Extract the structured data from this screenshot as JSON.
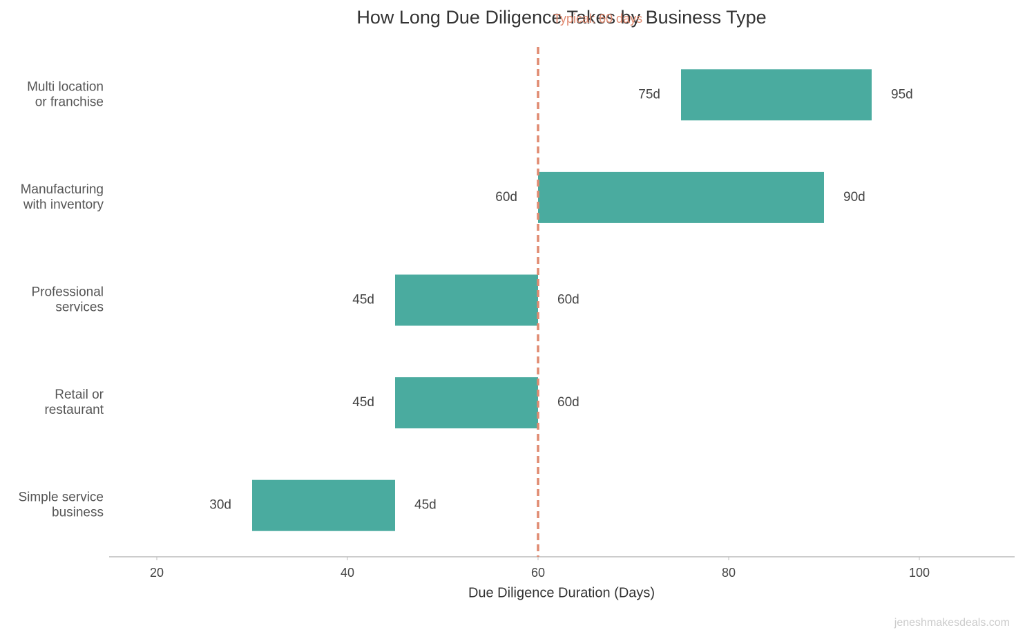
{
  "chart_data": {
    "type": "range_bar",
    "title": "How Long Due Diligence Takes by Business Type",
    "x_label": "Due Diligence Duration (Days)",
    "categories": [
      "Multi location\nor franchise",
      "Manufacturing\nwith inventory",
      "Professional\nservices",
      "Retail or\nrestaurant",
      "Simple service\nbusiness"
    ],
    "low": [
      75,
      60,
      45,
      45,
      30
    ],
    "low_labels": [
      "75d",
      "60d",
      "45d",
      "45d",
      "30d"
    ],
    "high": [
      95,
      90,
      60,
      60,
      45
    ],
    "high_labels": [
      "95d",
      "90d",
      "60d",
      "60d",
      "45d"
    ],
    "color": "#4aab9f",
    "xlim": [
      15,
      110
    ],
    "xticks": [
      20,
      40,
      60,
      80,
      100
    ],
    "reference_line": {
      "value": 60,
      "label": "Typical: 60 days",
      "color": "#e08a70"
    },
    "watermark": "jeneshmakesdeals.com"
  }
}
